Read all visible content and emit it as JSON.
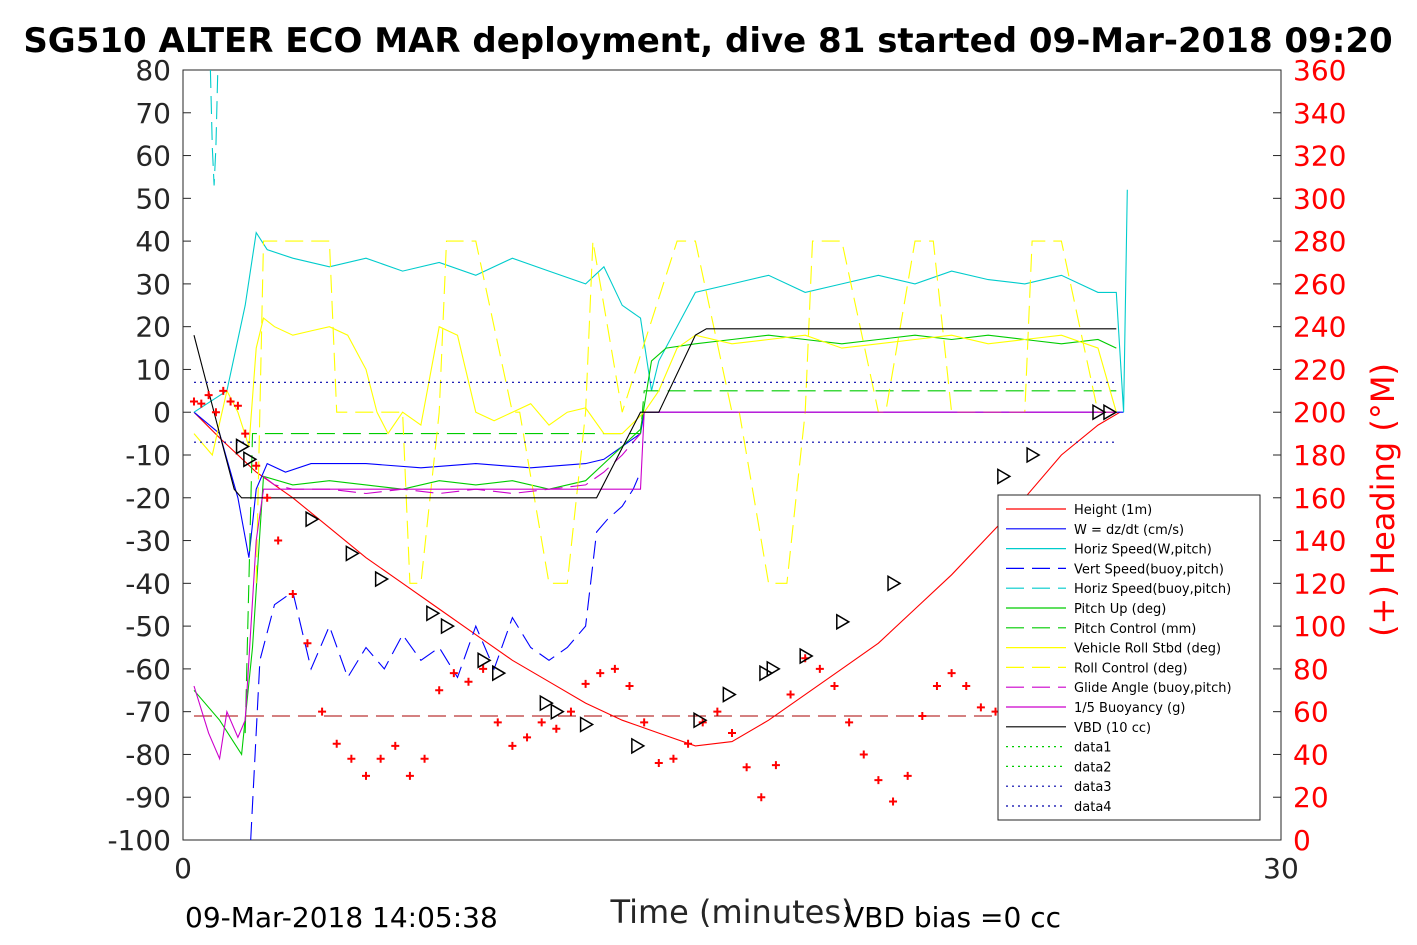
{
  "chart_data": {
    "type": "line",
    "title": "SG510 ALTER ECO MAR deployment, dive 81 started 09-Mar-2018 09:20",
    "xlabel": "Time (minutes)",
    "ylabel_right": "(+) Heading (°M)",
    "xlim": [
      0,
      30
    ],
    "ylim": [
      -100,
      80
    ],
    "ylim_right": [
      0,
      360
    ],
    "x_ticks": [
      "0",
      "30"
    ],
    "y_ticks": [
      "80",
      "70",
      "60",
      "50",
      "40",
      "30",
      "20",
      "10",
      "0",
      "-10",
      "-20",
      "-30",
      "-40",
      "-50",
      "-60",
      "-70",
      "-80",
      "-90",
      "-100"
    ],
    "y_ticks_right": [
      "360",
      "340",
      "320",
      "300",
      "280",
      "260",
      "240",
      "220",
      "200",
      "180",
      "160",
      "140",
      "120",
      "100",
      "80",
      "60",
      "40",
      "20",
      "0"
    ],
    "footer_left": "09-Mar-2018 14:05:38",
    "footer_right": "VBD bias =0 cc",
    "legend_position": "lower-right",
    "series": [
      {
        "name": "Height (1m)",
        "color": "#ff0000",
        "style": "solid",
        "x": [
          0.3,
          1.0,
          2.0,
          3.0,
          4.0,
          5.0,
          6.0,
          7.0,
          8.0,
          9.0,
          10.0,
          11.0,
          12.0,
          13.0,
          14.0,
          15.0,
          16.0,
          17.0,
          18.0,
          19.0,
          20.0,
          21.0,
          22.0,
          23.0,
          24.0,
          25.0,
          25.6
        ],
        "y": [
          0,
          -6,
          -14,
          -20,
          -27,
          -34,
          -40,
          -46,
          -52,
          -58,
          -63,
          -68,
          -72,
          -75,
          -78,
          -77,
          -72,
          -66,
          -60,
          -54,
          -46,
          -38,
          -29,
          -20,
          -10,
          -3,
          0
        ]
      },
      {
        "name": "W = dz/dt (cm/s)",
        "color": "#0000ff",
        "style": "solid",
        "x": [
          0.3,
          1.0,
          1.5,
          1.8,
          2.0,
          2.3,
          2.8,
          3.5,
          5.0,
          6.5,
          8.0,
          9.5,
          11.0,
          11.5,
          12.0,
          12.5,
          12.6,
          13.0,
          13.5,
          14.0,
          14.5,
          15.0,
          16.0,
          17.0,
          18.0,
          19.0,
          20.0,
          21.0,
          22.0,
          23.0,
          24.0,
          25.0,
          25.5,
          25.7
        ],
        "y": [
          0,
          -5,
          -20,
          -34,
          -18,
          -12,
          -14,
          -12,
          -12,
          -13,
          -12,
          -13,
          -12,
          -11,
          -8,
          -5,
          0,
          0,
          0,
          0,
          0,
          0,
          0,
          0,
          0,
          0,
          0,
          0,
          0,
          0,
          0,
          0,
          0,
          0
        ]
      },
      {
        "name": "Horiz Speed(W,pitch)",
        "color": "#00cccc",
        "style": "solid",
        "x": [
          0.3,
          1.2,
          1.7,
          2.0,
          2.3,
          3.0,
          4.0,
          5.0,
          6.0,
          7.0,
          8.0,
          9.0,
          10.0,
          11.0,
          11.5,
          12.0,
          12.5,
          12.8,
          13.0,
          14.0,
          15.0,
          16.0,
          17.0,
          18.0,
          19.0,
          20.0,
          21.0,
          22.0,
          23.0,
          24.0,
          25.0,
          25.5,
          25.7,
          25.8
        ],
        "y": [
          0,
          5,
          25,
          42,
          38,
          36,
          34,
          36,
          33,
          35,
          32,
          36,
          33,
          30,
          34,
          25,
          22,
          5,
          12,
          28,
          30,
          32,
          28,
          30,
          32,
          30,
          33,
          31,
          30,
          32,
          28,
          28,
          0,
          52
        ]
      },
      {
        "name": "Vert Speed(buoy,pitch)",
        "color": "#0000ff",
        "style": "dashed",
        "x": [
          1.85,
          2.1,
          2.5,
          3.0,
          3.5,
          4.0,
          4.5,
          5.0,
          5.5,
          6.0,
          6.5,
          7.0,
          7.5,
          8.0,
          8.5,
          9.0,
          9.5,
          10.0,
          10.5,
          11.0,
          11.3,
          11.6,
          12.0,
          12.3,
          12.5
        ],
        "y": [
          -100,
          -58,
          -45,
          -42,
          -60,
          -50,
          -62,
          -55,
          -60,
          -52,
          -58,
          -55,
          -62,
          -50,
          -60,
          -48,
          -55,
          -58,
          -55,
          -50,
          -28,
          -25,
          -22,
          -18,
          -14
        ]
      },
      {
        "name": "Horiz Speed(buoy,pitch)",
        "color": "#00cccc",
        "style": "dashed",
        "x": [
          0.75,
          0.8,
          0.85,
          0.9,
          0.95
        ],
        "y": [
          80,
          62,
          53,
          62,
          80
        ]
      },
      {
        "name": "Pitch Up (deg)",
        "color": "#00cc00",
        "style": "solid",
        "x": [
          0.3,
          1.0,
          1.6,
          1.9,
          2.2,
          3.0,
          4.0,
          5.0,
          6.0,
          7.0,
          8.0,
          9.0,
          10.0,
          11.0,
          11.5,
          12.0,
          12.5,
          12.8,
          13.2,
          14.0,
          15.0,
          16.0,
          17.0,
          18.0,
          19.0,
          20.0,
          21.0,
          22.0,
          23.0,
          24.0,
          25.0,
          25.5
        ],
        "y": [
          -65,
          -72,
          -80,
          -55,
          -15,
          -17,
          -16,
          -17,
          -18,
          -16,
          -17,
          -16,
          -18,
          -16,
          -12,
          -8,
          -4,
          12,
          15,
          16,
          17,
          18,
          17,
          16,
          17,
          18,
          17,
          18,
          17,
          16,
          17,
          15
        ]
      },
      {
        "name": "Pitch Control (mm)",
        "color": "#00cc00",
        "style": "dashed",
        "x": [
          1.7,
          1.9,
          2.5,
          5.0,
          8.0,
          11.0,
          12.5,
          12.6,
          13.5,
          16.0,
          20.0,
          25.5
        ],
        "y": [
          -75,
          -5,
          -5,
          -5,
          -5,
          -5,
          -5,
          5,
          5,
          5,
          5,
          5
        ]
      },
      {
        "name": "Vehicle Roll Stbd (deg)",
        "color": "#ffff00",
        "style": "solid",
        "x": [
          0.3,
          0.8,
          1.2,
          1.5,
          1.8,
          2.0,
          2.2,
          2.5,
          3.0,
          3.5,
          4.0,
          4.5,
          5.0,
          5.3,
          5.6,
          6.0,
          6.5,
          7.0,
          7.5,
          8.0,
          8.5,
          9.0,
          9.5,
          10.0,
          10.5,
          11.0,
          11.5,
          12.0,
          12.6,
          13.0,
          13.5,
          14.0,
          15.0,
          16.0,
          17.0,
          18.0,
          19.0,
          20.0,
          21.0,
          22.0,
          23.0,
          24.0,
          25.0,
          25.5
        ],
        "y": [
          -5,
          -10,
          5,
          0,
          -8,
          15,
          22,
          20,
          18,
          19,
          20,
          18,
          10,
          0,
          -5,
          0,
          -3,
          20,
          18,
          0,
          -2,
          0,
          2,
          -3,
          0,
          1,
          -5,
          -5,
          0,
          5,
          15,
          18,
          16,
          17,
          18,
          15,
          16,
          17,
          18,
          16,
          17,
          18,
          15,
          0
        ]
      },
      {
        "name": "Roll Control (deg)",
        "color": "#ffff00",
        "style": "dashed",
        "x": [
          2.0,
          2.2,
          3.0,
          4.0,
          4.2,
          5.0,
          5.5,
          6.0,
          6.2,
          6.5,
          7.0,
          7.2,
          8.0,
          9.0,
          9.2,
          10.0,
          10.5,
          11.0,
          11.2,
          12.0,
          13.5,
          14.0,
          15.0,
          15.2,
          16.0,
          16.5,
          17.0,
          17.2,
          18.0,
          19.0,
          19.2,
          20.0,
          20.5,
          21.0,
          21.2,
          22.0,
          23.0,
          23.2,
          24.0,
          25.0,
          25.5
        ],
        "y": [
          -40,
          40,
          40,
          40,
          0,
          0,
          0,
          0,
          -40,
          -40,
          0,
          40,
          40,
          0,
          0,
          -40,
          -40,
          0,
          40,
          0,
          40,
          40,
          0,
          0,
          -40,
          -40,
          0,
          40,
          40,
          0,
          0,
          40,
          40,
          0,
          0,
          0,
          0,
          40,
          40,
          0,
          0
        ]
      },
      {
        "name": "Glide Angle (buoy,pitch)",
        "color": "#cc00cc",
        "style": "dashed",
        "x": [
          2.2,
          2.5,
          3.0,
          4.0,
          5.0,
          6.0,
          7.0,
          8.0,
          9.0,
          10.0,
          11.0,
          11.5,
          12.0,
          12.5
        ],
        "y": [
          -15,
          -17,
          -18,
          -18,
          -19,
          -18,
          -19,
          -18,
          -19,
          -18,
          -17,
          -14,
          -10,
          -5
        ]
      },
      {
        "name": "1/5 Buoyancy (g)",
        "color": "#cc00cc",
        "style": "solid",
        "x": [
          0.3,
          0.7,
          1.0,
          1.2,
          1.5,
          1.7,
          2.0,
          2.2,
          12.5,
          12.6,
          16.0,
          20.0,
          25.5
        ],
        "y": [
          -64,
          -75,
          -81,
          -70,
          -76,
          -72,
          -30,
          -18,
          -18,
          0,
          0,
          0,
          0
        ]
      },
      {
        "name": "VBD (10 cc)",
        "color": "#000000",
        "style": "solid",
        "x": [
          0.3,
          1.0,
          1.4,
          1.6,
          2.0,
          4.0,
          6.0,
          8.0,
          10.0,
          11.0,
          11.3,
          12.5,
          13.0,
          14.0,
          14.3,
          16.0,
          18.0,
          20.0,
          22.0,
          24.0,
          25.5
        ],
        "y": [
          18,
          -5,
          -18,
          -20,
          -20,
          -20,
          -20,
          -20,
          -20,
          -20,
          -20,
          0,
          0,
          18,
          19.5,
          19.5,
          19.5,
          19.5,
          19.5,
          19.5,
          19.5
        ]
      },
      {
        "name": "data1",
        "color": "#00cc00",
        "style": "dotted",
        "x": [],
        "y": []
      },
      {
        "name": "data2",
        "color": "#00cc00",
        "style": "dotted",
        "x": [],
        "y": []
      },
      {
        "name": "data3",
        "color": "#0000aa",
        "style": "dotted",
        "x": [
          0.3,
          25.5
        ],
        "y": [
          7,
          7
        ]
      },
      {
        "name": "data4",
        "color": "#0000aa",
        "style": "dotted",
        "x": [
          0.3,
          25.5
        ],
        "y": [
          -7,
          -7
        ]
      }
    ],
    "reference_lines": [
      {
        "color": "#aa0000",
        "style": "dashed",
        "y": -71,
        "x": [
          0.3,
          25.5
        ]
      }
    ],
    "heading": {
      "marker": "+",
      "color": "#ff0000",
      "axis": "right",
      "x": [
        0.3,
        0.5,
        0.7,
        0.9,
        1.1,
        1.3,
        1.5,
        1.7,
        2.0,
        2.3,
        2.6,
        3.0,
        3.4,
        3.8,
        4.2,
        4.6,
        5.0,
        5.4,
        5.8,
        6.2,
        6.6,
        7.0,
        7.4,
        7.8,
        8.2,
        8.6,
        9.0,
        9.4,
        9.8,
        10.2,
        10.6,
        11.0,
        11.4,
        11.8,
        12.2,
        12.6,
        13.0,
        13.4,
        13.8,
        14.2,
        14.6,
        15.0,
        15.4,
        15.8,
        16.2,
        16.6,
        17.0,
        17.4,
        17.8,
        18.2,
        18.6,
        19.0,
        19.4,
        19.8,
        20.2,
        20.6,
        21.0,
        21.4,
        21.8,
        22.2,
        22.6,
        23.0,
        23.4,
        23.8,
        24.2,
        24.6
      ],
      "y": [
        205,
        204,
        208,
        200,
        210,
        205,
        203,
        190,
        175,
        160,
        140,
        115,
        92,
        60,
        45,
        38,
        30,
        38,
        44,
        30,
        38,
        70,
        78,
        74,
        80,
        55,
        44,
        48,
        55,
        52,
        60,
        73,
        78,
        80,
        72,
        55,
        36,
        38,
        45,
        55,
        60,
        50,
        34,
        20,
        35,
        68,
        85,
        80,
        72,
        55,
        40,
        28,
        18,
        30,
        58,
        72,
        78,
        72,
        62,
        60,
        52,
        42,
        32,
        25,
        45,
        60
      ]
    },
    "height_markers": {
      "color": "#000000",
      "x": [
        1.6,
        1.8,
        3.5,
        4.6,
        5.4,
        6.8,
        7.2,
        8.2,
        8.6,
        9.9,
        10.2,
        11.0,
        12.4,
        14.1,
        14.9,
        15.9,
        16.1,
        17.0,
        18.0,
        19.4,
        22.4,
        23.2,
        25.0,
        25.3
      ],
      "y": [
        -8,
        -11,
        -25,
        -33,
        -39,
        -47,
        -50,
        -58,
        -61,
        -68,
        -70,
        -73,
        -78,
        -72,
        -66,
        -61,
        -60,
        -57,
        -49,
        -40,
        -15,
        -10,
        0,
        0
      ]
    }
  }
}
